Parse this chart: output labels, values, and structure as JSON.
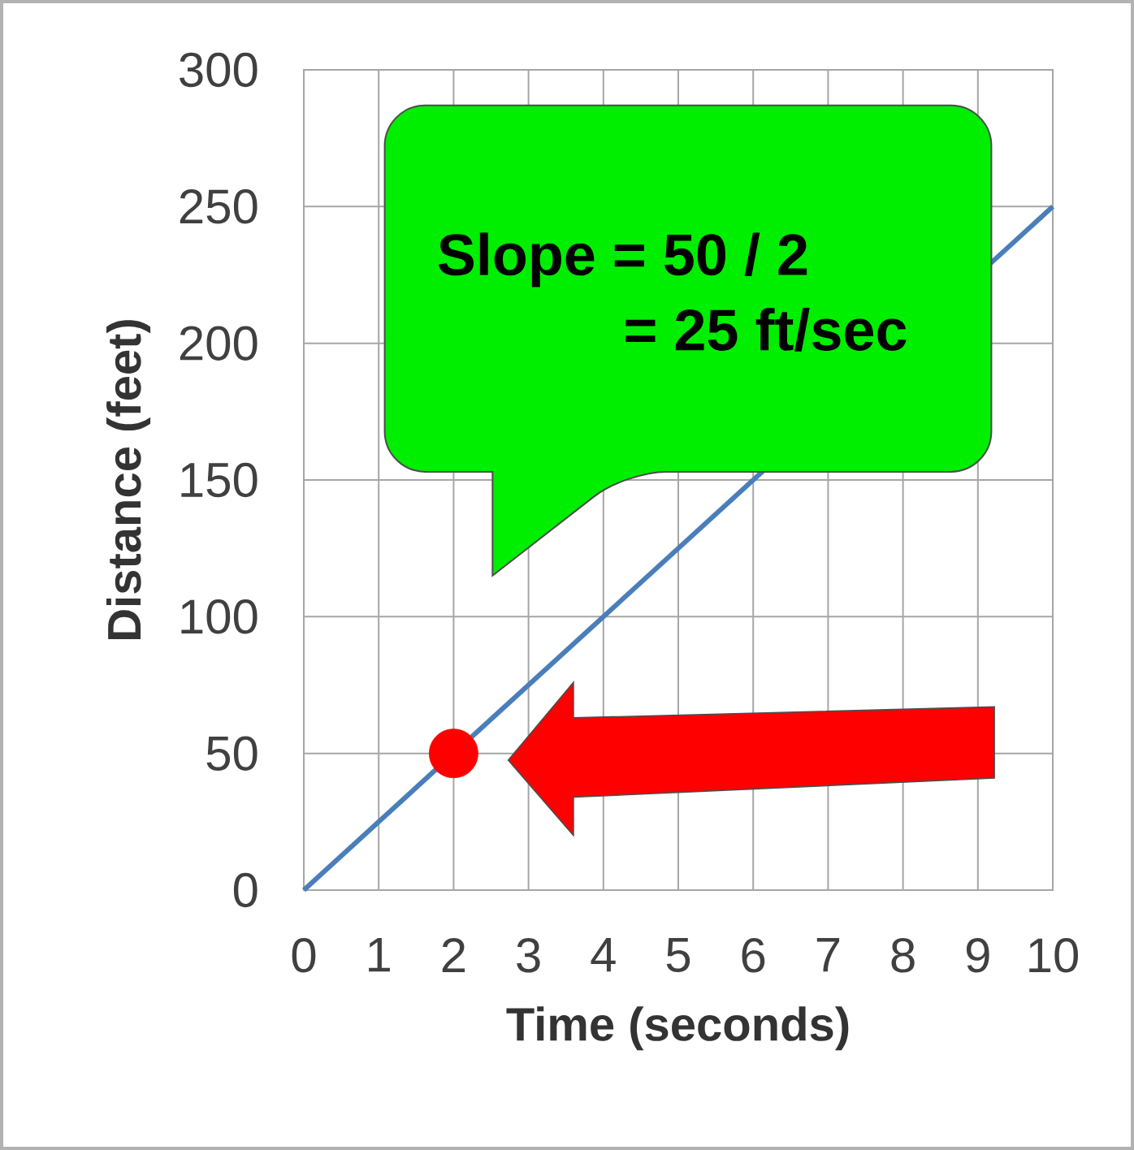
{
  "chart_data": {
    "type": "line",
    "xlabel": "Time (seconds)",
    "ylabel": "Distance (feet)",
    "xlim": [
      0,
      10
    ],
    "ylim": [
      0,
      300
    ],
    "xticks": [
      0,
      1,
      2,
      3,
      4,
      5,
      6,
      7,
      8,
      9,
      10
    ],
    "yticks": [
      0,
      50,
      100,
      150,
      200,
      250,
      300
    ],
    "grid": true,
    "series": [
      {
        "x": [
          0,
          10
        ],
        "values": [
          0,
          250
        ],
        "color": "#4a7ebb",
        "marker": "none"
      },
      {
        "type": "scatter",
        "x": [
          2
        ],
        "values": [
          50
        ],
        "color": "#ff0000",
        "marker": "circle"
      }
    ],
    "annotations": [
      "Slope = 50 / 2",
      "= 25  ft/sec"
    ]
  }
}
